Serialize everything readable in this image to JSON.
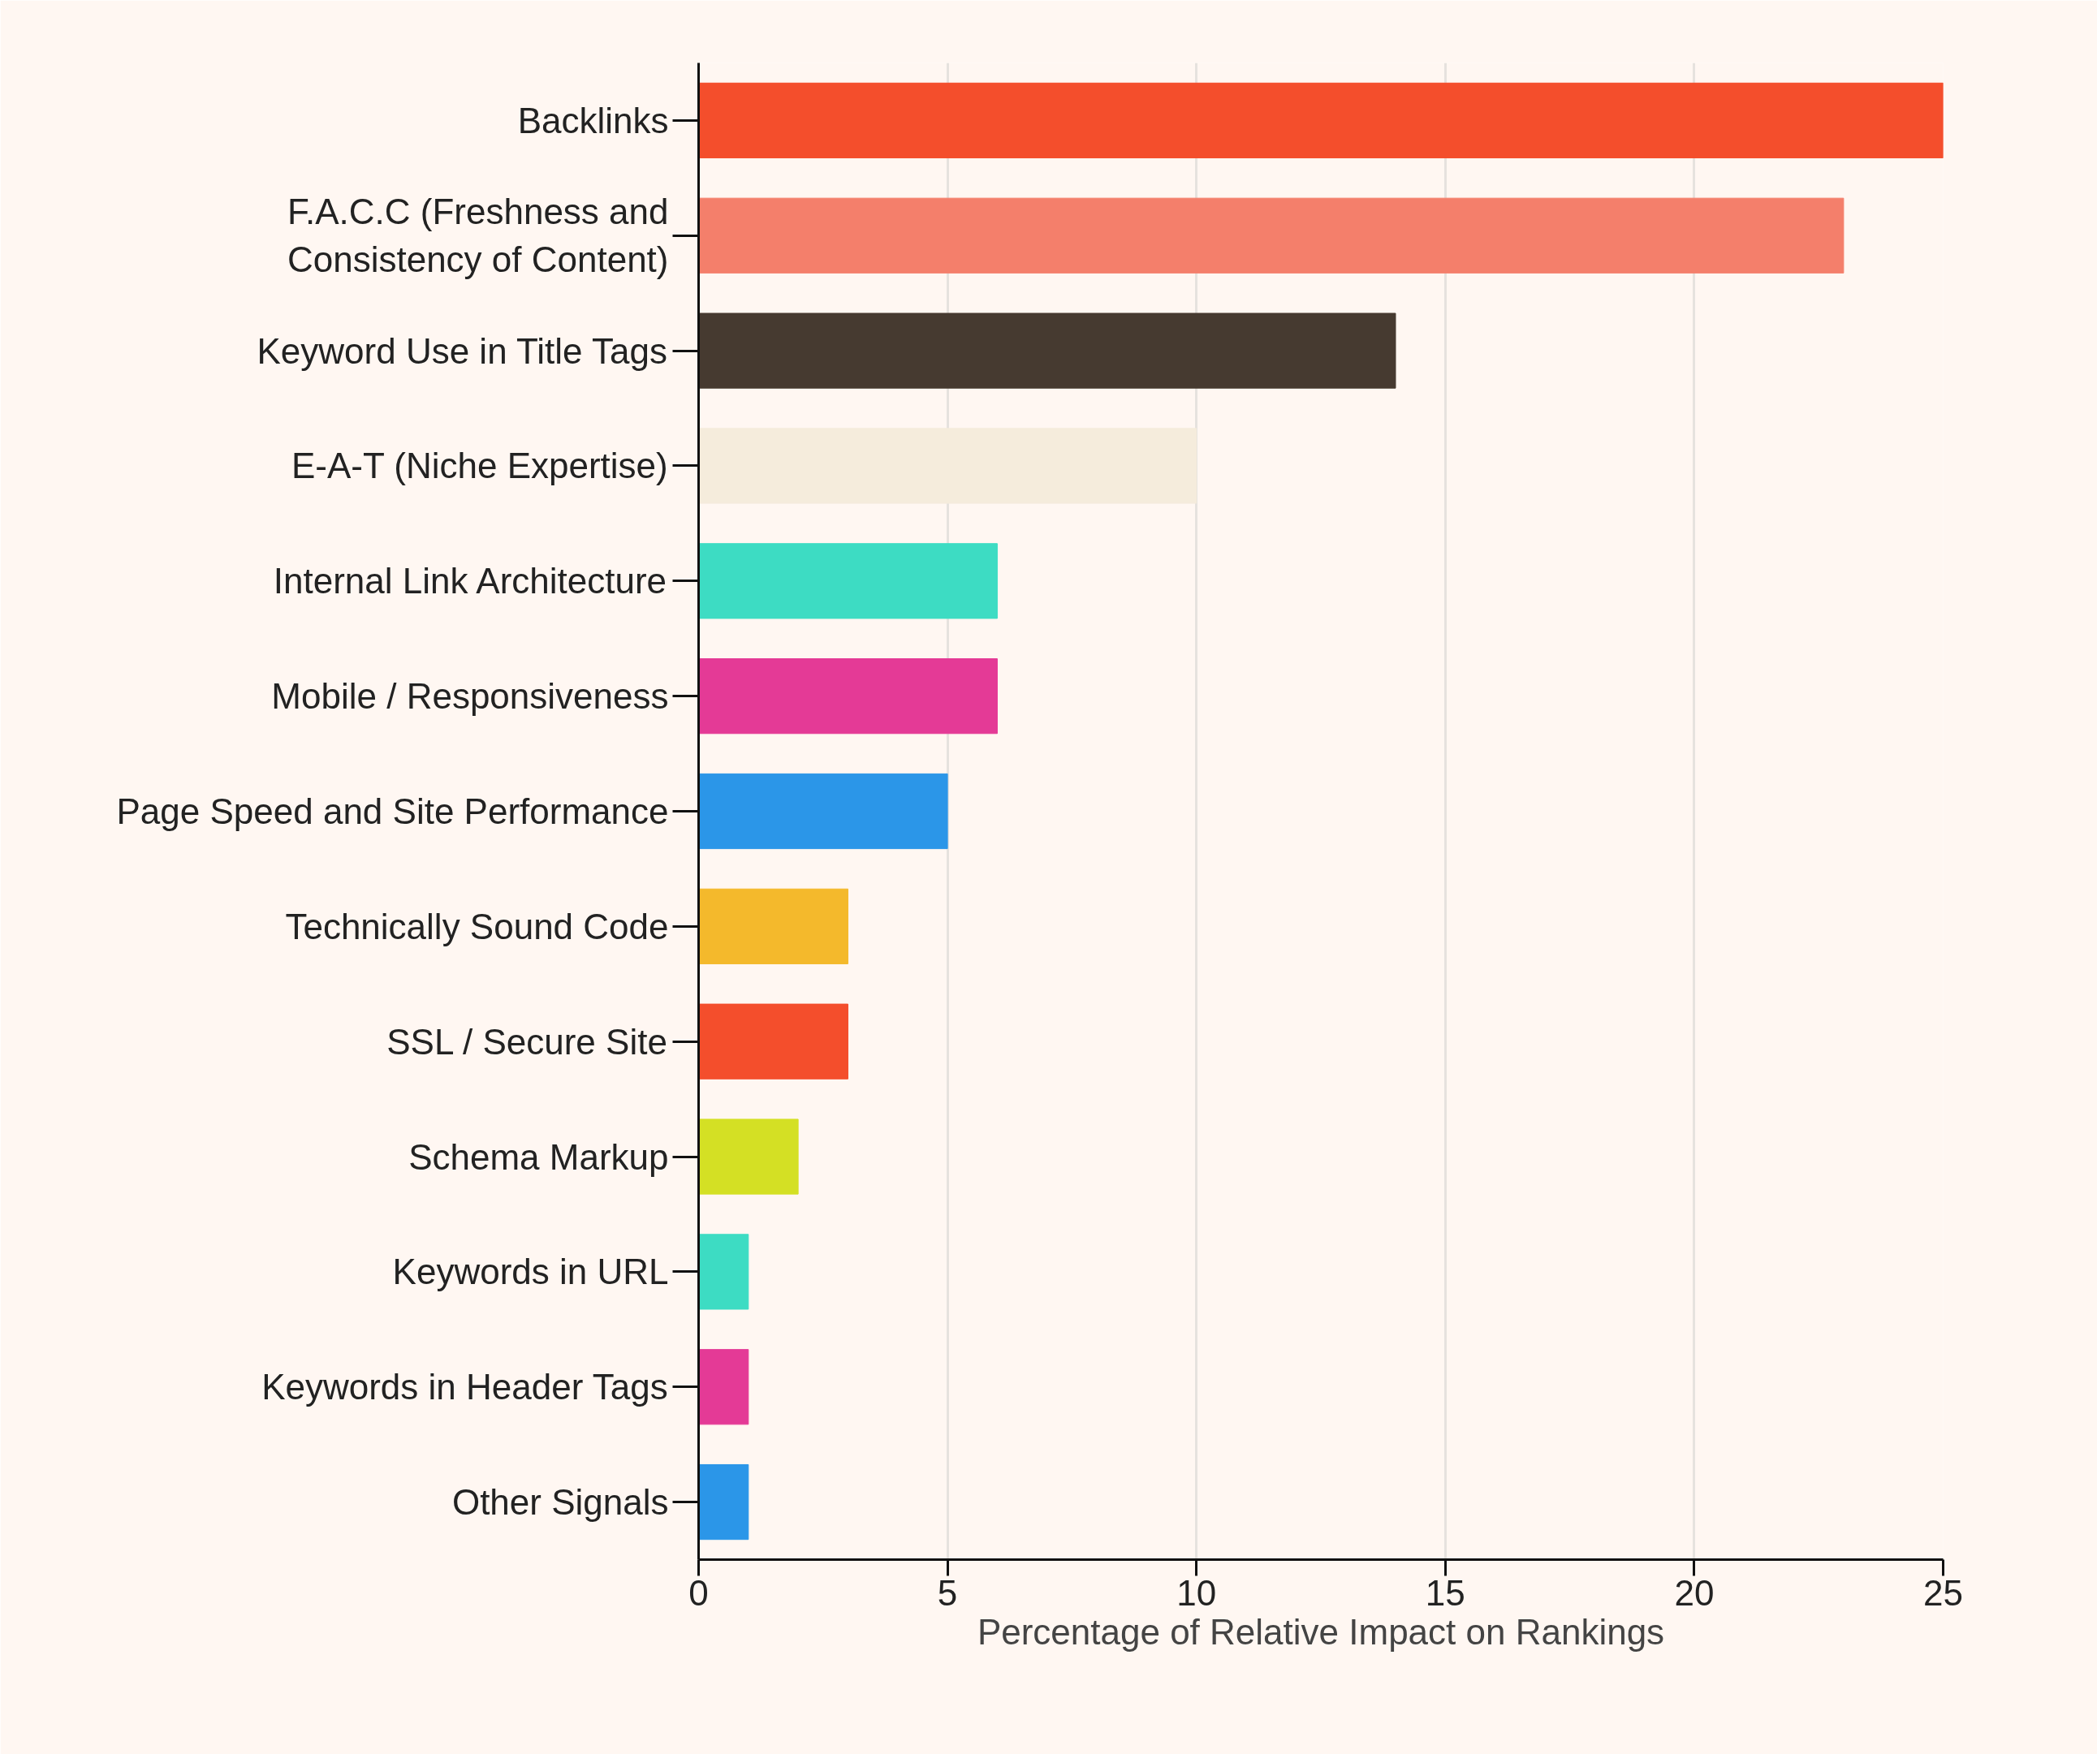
{
  "chart_data": {
    "type": "bar",
    "orientation": "horizontal",
    "xlabel": "Percentage of Relative Impact on Rankings",
    "categories": [
      "Backlinks",
      "F.A.C.C (Freshness and Consistency of Content)",
      "Keyword Use in Title Tags",
      "E-A-T (Niche Expertise)",
      "Internal Link Architecture",
      "Mobile / Responsiveness",
      "Page Speed and Site Performance",
      "Technically Sound Code",
      "SSL / Secure Site",
      "Schema Markup",
      "Keywords in URL",
      "Keywords in Header Tags",
      "Other Signals"
    ],
    "values": [
      25,
      23,
      14,
      10,
      6,
      6,
      5,
      3,
      3,
      2,
      1,
      1,
      1
    ],
    "colors": [
      "#f44e2c",
      "#f47f6b",
      "#463a30",
      "#f5ecdc",
      "#3ddcc3",
      "#e43a96",
      "#2b96e8",
      "#f4b92c",
      "#f44e2c",
      "#d4e024",
      "#3ddcc3",
      "#e43a96",
      "#2b96e8"
    ],
    "xlim": [
      0,
      25
    ],
    "xticks": [
      0,
      5,
      10,
      15,
      20,
      25
    ],
    "grid": "x"
  }
}
